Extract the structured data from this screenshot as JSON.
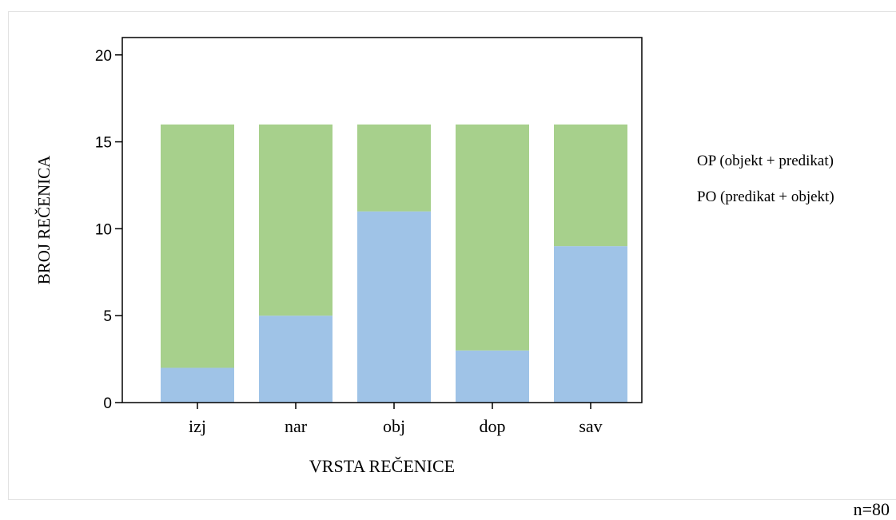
{
  "chart_data": {
    "type": "bar",
    "stacked": true,
    "categories": [
      "izj",
      "nar",
      "obj",
      "dop",
      "sav"
    ],
    "series": [
      {
        "name": "PO (predikat + objekt)",
        "values": [
          2,
          5,
          11,
          3,
          9
        ],
        "color": "#9fc3e7"
      },
      {
        "name": "OP (objekt + predikat)",
        "values": [
          14,
          11,
          5,
          13,
          7
        ],
        "color": "#a7d08c"
      }
    ],
    "xlabel": "VRSTA REČENICE",
    "ylabel": "BROJ REČENICA",
    "ylim": [
      0,
      21
    ],
    "yticks": [
      0,
      5,
      10,
      15,
      20
    ],
    "grid": false,
    "legend_position": "right"
  },
  "legend": {
    "items": [
      "OP (objekt + predikat)",
      "PO (predikat + objekt)"
    ]
  },
  "footer": {
    "sample_size": "n=80"
  }
}
